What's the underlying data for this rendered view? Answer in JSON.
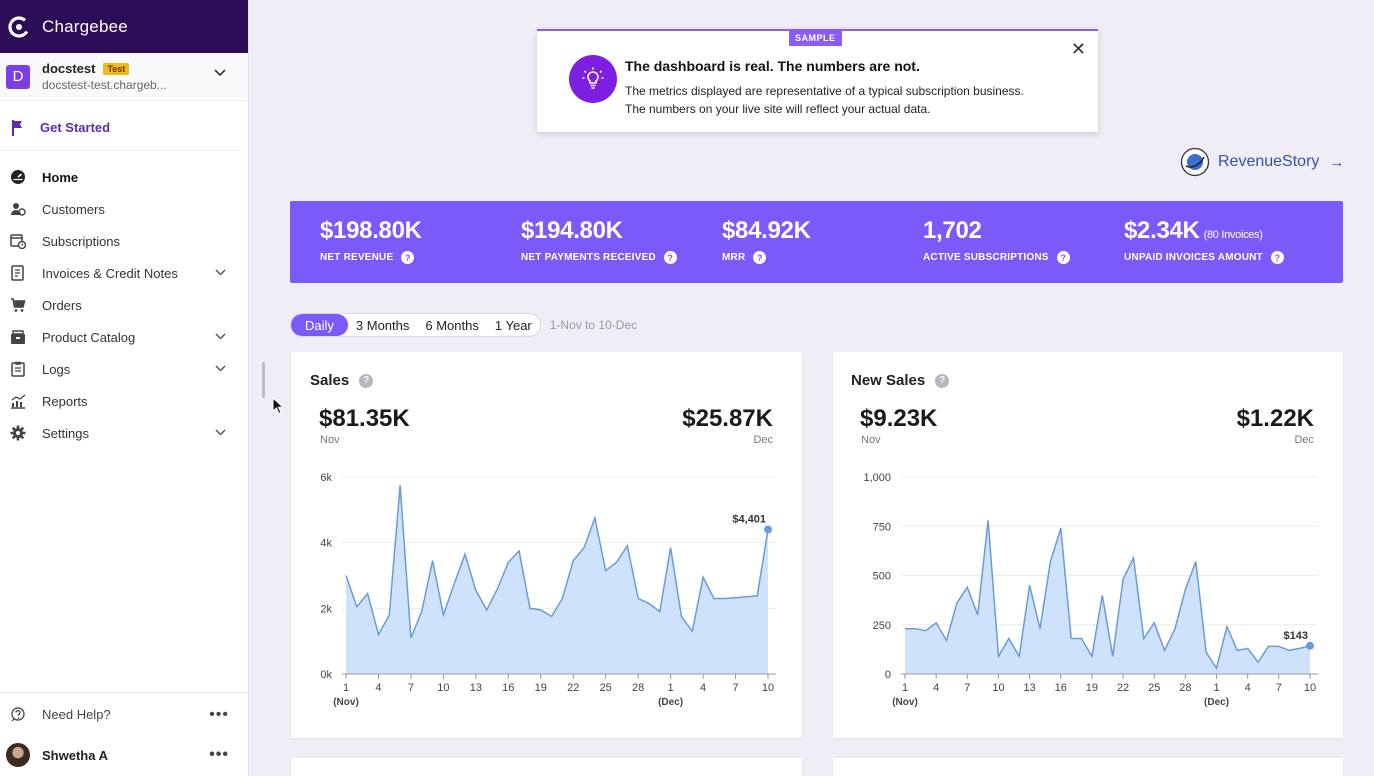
{
  "brand": {
    "name": "Chargebee"
  },
  "site": {
    "initial": "D",
    "name": "docstest",
    "badge": "Test",
    "url": "docstest-test.chargeb..."
  },
  "sidebar": {
    "get_started": "Get Started",
    "items": [
      {
        "label": "Home",
        "icon": "home-icon",
        "active": true,
        "chevron": false
      },
      {
        "label": "Customers",
        "icon": "customers-icon",
        "chevron": false
      },
      {
        "label": "Subscriptions",
        "icon": "subscriptions-icon",
        "chevron": false
      },
      {
        "label": "Invoices & Credit Notes",
        "icon": "invoice-icon",
        "chevron": true
      },
      {
        "label": "Orders",
        "icon": "cart-icon",
        "chevron": false
      },
      {
        "label": "Product Catalog",
        "icon": "catalog-icon",
        "chevron": true
      },
      {
        "label": "Logs",
        "icon": "clipboard-icon",
        "chevron": true
      },
      {
        "label": "Reports",
        "icon": "reports-icon",
        "chevron": false
      },
      {
        "label": "Settings",
        "icon": "gear-icon",
        "chevron": true
      }
    ],
    "help": "Need Help?",
    "user": "Shwetha A",
    "more": "•••"
  },
  "notice": {
    "badge": "SAMPLE",
    "title": "The dashboard is real. The numbers are not.",
    "line1": "The metrics displayed are representative of a typical subscription business.",
    "line2": "The numbers on your live site will reflect your actual data.",
    "close": "✕"
  },
  "revenue_story": {
    "label": "RevenueStory",
    "arrow": "→"
  },
  "metrics": [
    {
      "value": "$198.80K",
      "label": "NET REVENUE"
    },
    {
      "value": "$194.80K",
      "label": "NET PAYMENTS RECEIVED"
    },
    {
      "value": "$84.92K",
      "label": "MRR"
    },
    {
      "value": "1,702",
      "label": "ACTIVE SUBSCRIPTIONS"
    },
    {
      "value": "$2.34K",
      "sub": "(80 Invoices)",
      "label": "UNPAID INVOICES AMOUNT"
    }
  ],
  "range": {
    "tabs": [
      "Daily",
      "3 Months",
      "6 Months",
      "1 Year"
    ],
    "active": 0,
    "note": "1-Nov to 10-Dec"
  },
  "cards": {
    "sales": {
      "title": "Sales",
      "left_value": "$81.35K",
      "left_sub": "Nov",
      "right_value": "$25.87K",
      "right_sub": "Dec"
    },
    "new_sales": {
      "title": "New Sales",
      "left_value": "$9.23K",
      "left_sub": "Nov",
      "right_value": "$1.22K",
      "right_sub": "Dec"
    }
  },
  "colors": {
    "accent": "#7a5af8",
    "area_fill": "#cfe2fb",
    "area_line": "#6a9bd8"
  },
  "chart_data": [
    {
      "type": "area",
      "title": "Sales",
      "ylim": [
        0,
        6000
      ],
      "yticks": [
        0,
        2000,
        4000,
        6000
      ],
      "ytick_labels": [
        "0k",
        "2k",
        "4k",
        "6k"
      ],
      "xtick_labels": [
        "1",
        "4",
        "7",
        "10",
        "13",
        "16",
        "19",
        "22",
        "25",
        "28",
        "1",
        "4",
        "7",
        "10"
      ],
      "xtick_sublabels": {
        "0": "(Nov)",
        "10": "(Dec)"
      },
      "last_label": "$4,401",
      "values": [
        3000,
        2050,
        2450,
        1200,
        1800,
        5750,
        1100,
        1900,
        3450,
        1800,
        2750,
        3650,
        2550,
        1950,
        2600,
        3400,
        3750,
        2000,
        1950,
        1750,
        2300,
        3450,
        3850,
        4750,
        3150,
        3400,
        3900,
        2300,
        2150,
        1900,
        3850,
        1750,
        1300,
        2950,
        2300,
        2300,
        2320,
        2350,
        2380,
        4401
      ]
    },
    {
      "type": "area",
      "title": "New Sales",
      "ylim": [
        0,
        1000
      ],
      "yticks": [
        0,
        250,
        500,
        750,
        1000
      ],
      "ytick_labels": [
        "0",
        "250",
        "500",
        "750",
        "1,000"
      ],
      "xtick_labels": [
        "1",
        "4",
        "7",
        "10",
        "13",
        "16",
        "19",
        "22",
        "25",
        "28",
        "1",
        "4",
        "7",
        "10"
      ],
      "xtick_sublabels": {
        "0": "(Nov)",
        "10": "(Dec)"
      },
      "last_label": "$143",
      "values": [
        230,
        230,
        220,
        260,
        170,
        360,
        440,
        300,
        780,
        90,
        180,
        90,
        450,
        230,
        570,
        740,
        180,
        180,
        90,
        400,
        90,
        480,
        590,
        180,
        260,
        120,
        230,
        430,
        570,
        110,
        30,
        240,
        120,
        130,
        60,
        140,
        140,
        120,
        130,
        143
      ]
    }
  ]
}
